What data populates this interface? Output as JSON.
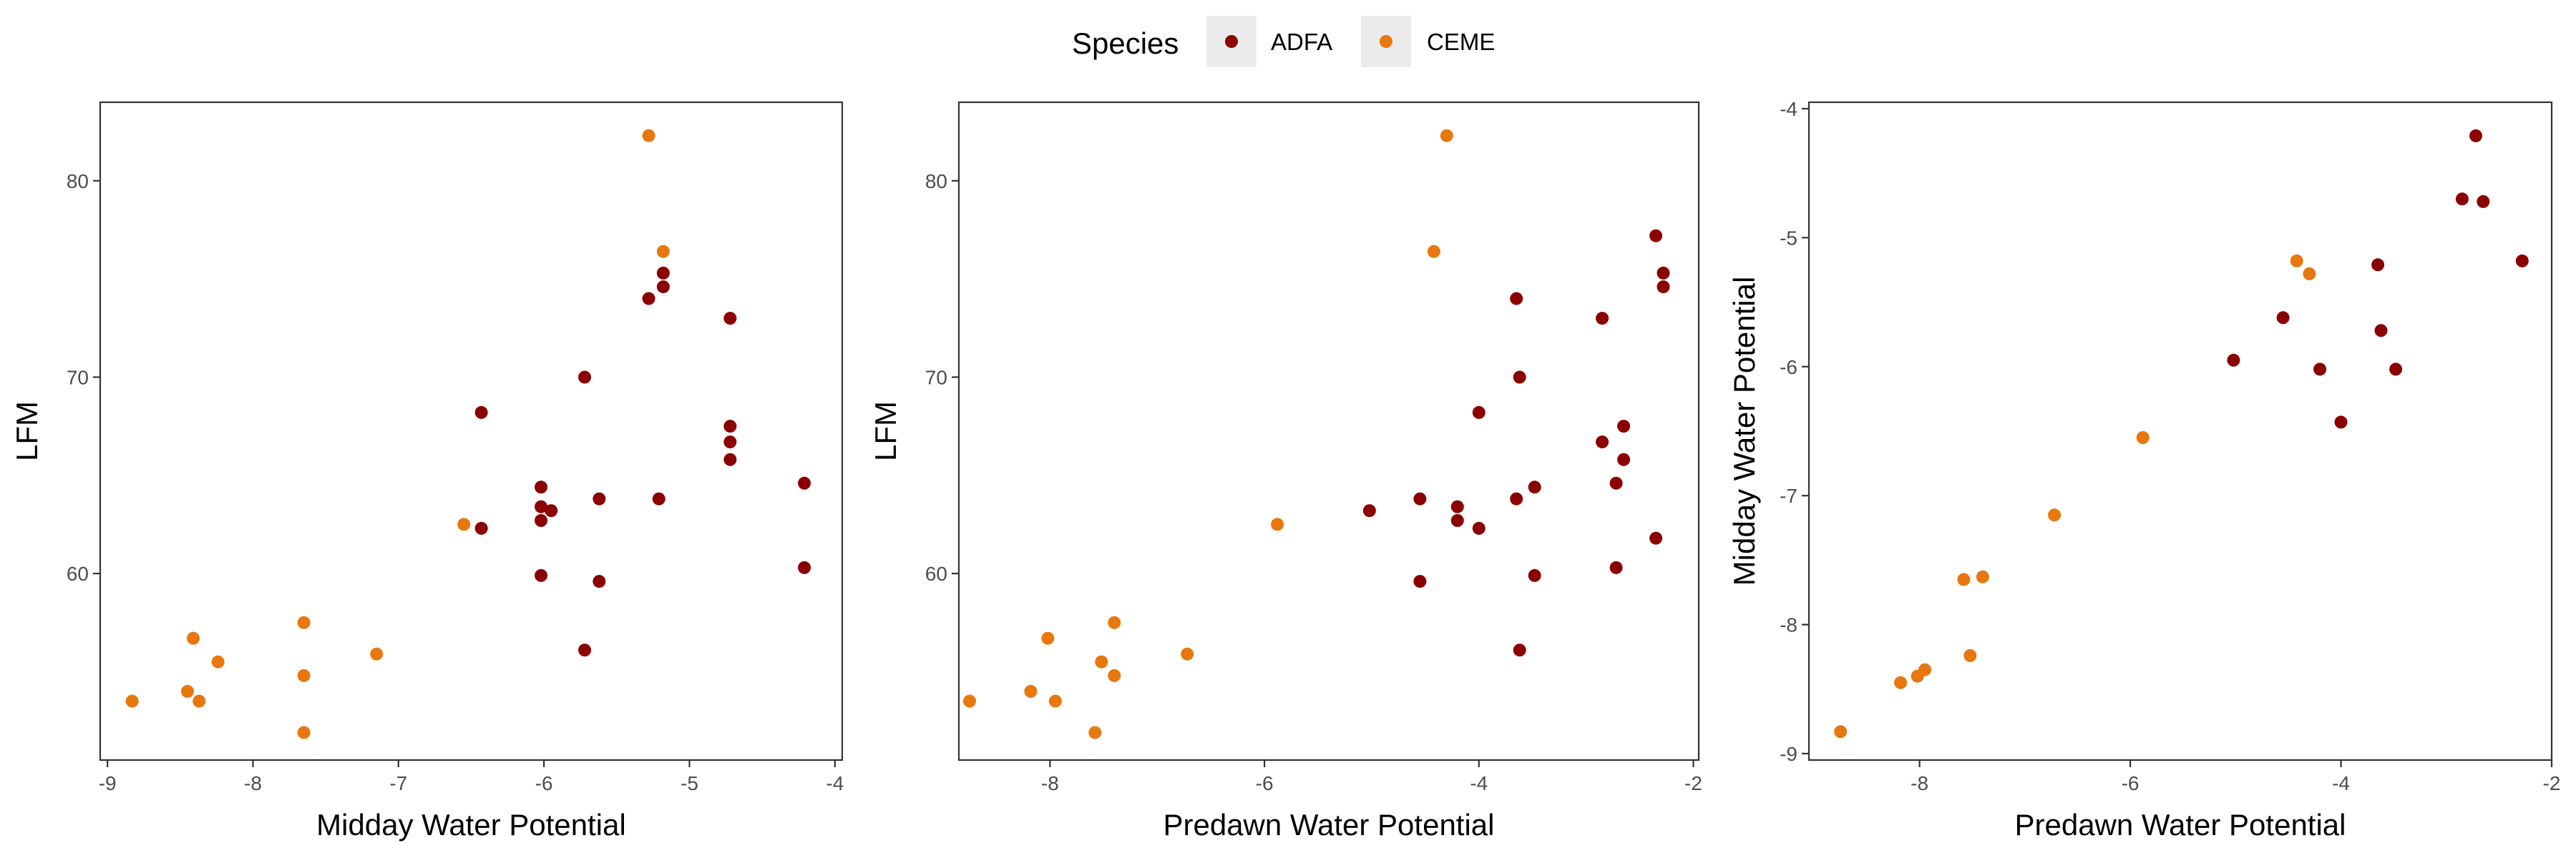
{
  "legend": {
    "title": "Species",
    "items": [
      {
        "label": "ADFA",
        "color": "#8B0000"
      },
      {
        "label": "CEME",
        "color": "#E8770E"
      }
    ]
  },
  "chart_data": [
    {
      "type": "scatter",
      "xlabel": "Midday Water Potential",
      "ylabel": "LFM",
      "xlim": [
        -9.05,
        -3.95
      ],
      "ylim": [
        50.5,
        84.0
      ],
      "xticks": [
        -9,
        -8,
        -7,
        -6,
        -5,
        -4
      ],
      "yticks": [
        60,
        70,
        80
      ],
      "grid": false,
      "legend": "top-center",
      "series": [
        {
          "name": "ADFA",
          "color": "#8B0000",
          "points": [
            [
              -5.28,
              74.0
            ],
            [
              -5.18,
              75.3
            ],
            [
              -5.18,
              74.6
            ],
            [
              -4.72,
              73.0
            ],
            [
              -5.72,
              70.0
            ],
            [
              -6.43,
              68.2
            ],
            [
              -4.72,
              67.5
            ],
            [
              -4.72,
              66.7
            ],
            [
              -4.72,
              65.8
            ],
            [
              -4.21,
              64.6
            ],
            [
              -6.02,
              64.4
            ],
            [
              -6.02,
              63.4
            ],
            [
              -5.62,
              63.8
            ],
            [
              -5.21,
              63.8
            ],
            [
              -5.95,
              63.2
            ],
            [
              -6.02,
              62.7
            ],
            [
              -6.43,
              62.3
            ],
            [
              -4.21,
              60.3
            ],
            [
              -6.02,
              59.9
            ],
            [
              -5.62,
              59.6
            ],
            [
              -5.72,
              56.1
            ]
          ]
        },
        {
          "name": "CEME",
          "color": "#E8770E",
          "points": [
            [
              -5.28,
              82.3
            ],
            [
              -5.18,
              76.4
            ],
            [
              -6.55,
              62.5
            ],
            [
              -7.65,
              57.5
            ],
            [
              -8.41,
              56.7
            ],
            [
              -8.24,
              55.5
            ],
            [
              -7.15,
              55.9
            ],
            [
              -7.65,
              54.8
            ],
            [
              -8.45,
              54.0
            ],
            [
              -8.37,
              53.5
            ],
            [
              -8.83,
              53.5
            ],
            [
              -7.65,
              51.9
            ]
          ]
        }
      ]
    },
    {
      "type": "scatter",
      "xlabel": "Predawn Water Potential",
      "ylabel": "LFM",
      "xlim": [
        -8.85,
        -1.95
      ],
      "ylim": [
        50.5,
        84.0
      ],
      "xticks": [
        -8,
        -6,
        -4,
        -2
      ],
      "yticks": [
        60,
        70,
        80
      ],
      "grid": false,
      "series": [
        {
          "name": "ADFA",
          "color": "#8B0000",
          "points": [
            [
              -2.35,
              77.2
            ],
            [
              -2.28,
              75.3
            ],
            [
              -2.28,
              74.6
            ],
            [
              -3.65,
              74.0
            ],
            [
              -2.85,
              73.0
            ],
            [
              -3.62,
              70.0
            ],
            [
              -4.0,
              68.2
            ],
            [
              -2.65,
              67.5
            ],
            [
              -2.85,
              66.7
            ],
            [
              -2.65,
              65.8
            ],
            [
              -2.72,
              64.6
            ],
            [
              -3.48,
              64.4
            ],
            [
              -3.65,
              63.8
            ],
            [
              -4.55,
              63.8
            ],
            [
              -4.2,
              63.4
            ],
            [
              -5.02,
              63.2
            ],
            [
              -4.2,
              62.7
            ],
            [
              -4.0,
              62.3
            ],
            [
              -2.35,
              61.8
            ],
            [
              -2.72,
              60.3
            ],
            [
              -3.48,
              59.9
            ],
            [
              -4.55,
              59.6
            ],
            [
              -3.62,
              56.1
            ]
          ]
        },
        {
          "name": "CEME",
          "color": "#E8770E",
          "points": [
            [
              -4.3,
              82.3
            ],
            [
              -4.42,
              76.4
            ],
            [
              -5.88,
              62.5
            ],
            [
              -7.4,
              57.5
            ],
            [
              -8.02,
              56.7
            ],
            [
              -7.52,
              55.5
            ],
            [
              -6.72,
              55.9
            ],
            [
              -7.4,
              54.8
            ],
            [
              -8.18,
              54.0
            ],
            [
              -7.95,
              53.5
            ],
            [
              -8.75,
              53.5
            ],
            [
              -7.58,
              51.9
            ]
          ]
        }
      ]
    },
    {
      "type": "scatter",
      "xlabel": "Predawn Water Potential",
      "ylabel": "Midday Water Potential",
      "xlim": [
        -9.05,
        -2.0
      ],
      "ylim": [
        -9.05,
        -3.95
      ],
      "xticks": [
        -8,
        -6,
        -4,
        -2
      ],
      "yticks": [
        -9,
        -8,
        -7,
        -6,
        -5,
        -4
      ],
      "grid": false,
      "series": [
        {
          "name": "ADFA",
          "color": "#8B0000",
          "points": [
            [
              -2.72,
              -4.21
            ],
            [
              -2.85,
              -4.7
            ],
            [
              -2.65,
              -4.72
            ],
            [
              -2.28,
              -5.18
            ],
            [
              -3.65,
              -5.21
            ],
            [
              -4.55,
              -5.62
            ],
            [
              -3.62,
              -5.72
            ],
            [
              -5.02,
              -5.95
            ],
            [
              -4.2,
              -6.02
            ],
            [
              -3.48,
              -6.02
            ],
            [
              -4.0,
              -6.43
            ]
          ]
        },
        {
          "name": "CEME",
          "color": "#E8770E",
          "points": [
            [
              -4.42,
              -5.18
            ],
            [
              -4.3,
              -5.28
            ],
            [
              -5.88,
              -6.55
            ],
            [
              -6.72,
              -7.15
            ],
            [
              -7.58,
              -7.65
            ],
            [
              -7.4,
              -7.63
            ],
            [
              -7.52,
              -8.24
            ],
            [
              -7.95,
              -8.35
            ],
            [
              -8.02,
              -8.4
            ],
            [
              -8.18,
              -8.45
            ],
            [
              -8.75,
              -8.83
            ]
          ]
        }
      ]
    }
  ]
}
